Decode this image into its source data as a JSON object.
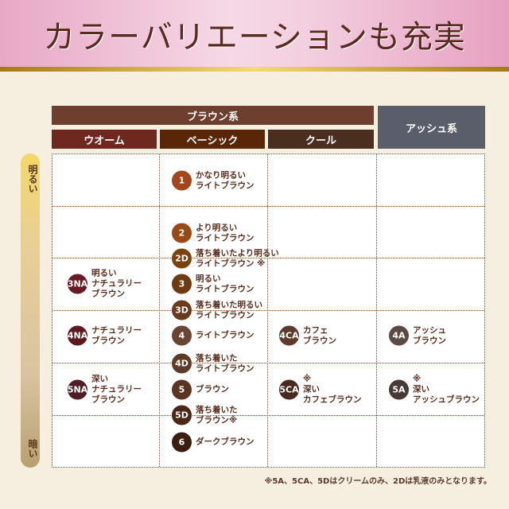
{
  "title": "カラーバリエーションも充実",
  "headers": {
    "brown": "ブラウン系",
    "ash": "アッシュ系",
    "warm": "ウオーム",
    "basic": "ベーシック",
    "cool": "クール"
  },
  "scale": {
    "bright": "明るい",
    "dark": "暗い"
  },
  "colors": [
    {
      "code": "1",
      "label": "かなり明るい\nライトブラウン",
      "color": "#a3461c"
    },
    {
      "code": "2",
      "label": "より明るい\nライトブラウン",
      "color": "#9a4a14"
    },
    {
      "code": "2D",
      "label": "落ち着いたより明るい\nライトブラウン ※",
      "color": "#7a420e"
    },
    {
      "code": "3",
      "label": "明るい\nライトブラウン",
      "color": "#6e3b10"
    },
    {
      "code": "3D",
      "label": "落ち着いた明るい\nライトブラウン",
      "color": "#6a3a1c"
    },
    {
      "code": "4",
      "label": "ライトブラウン",
      "color": "#6a4430"
    },
    {
      "code": "4D",
      "label": "落ち着いた\nライトブラウン",
      "color": "#5e3a28"
    },
    {
      "code": "5",
      "label": "ブラウン",
      "color": "#5a3420"
    },
    {
      "code": "5D",
      "label": "落ち着いた\nブラウン※",
      "color": "#4a2818"
    },
    {
      "code": "6",
      "label": "ダークブラウン",
      "color": "#3a1e10"
    },
    {
      "code": "3NA",
      "label": "明るい\nナチュラリー\nブラウン",
      "color": "#6a1a22"
    },
    {
      "code": "4NA",
      "label": "ナチュラリー\nブラウン",
      "color": "#5e1820"
    },
    {
      "code": "5NA",
      "label": "深い\nナチュラリー\nブラウン",
      "color": "#4e1e24"
    },
    {
      "code": "4CA",
      "label": "カフェ\nブラウン",
      "color": "#5e3a2a"
    },
    {
      "code": "5CA",
      "label": "※\n深い\nカフェブラウン",
      "color": "#4a2a1e"
    },
    {
      "code": "4A",
      "label": "アッシュ\nブラウン",
      "color": "#5b4a44"
    },
    {
      "code": "5A",
      "label": "※\n深い\nアッシュブラウン",
      "color": "#463a36"
    }
  ],
  "footnote": "※5A、5CA、5Dはクリームのみ、2Dは乳液のみとなります。"
}
